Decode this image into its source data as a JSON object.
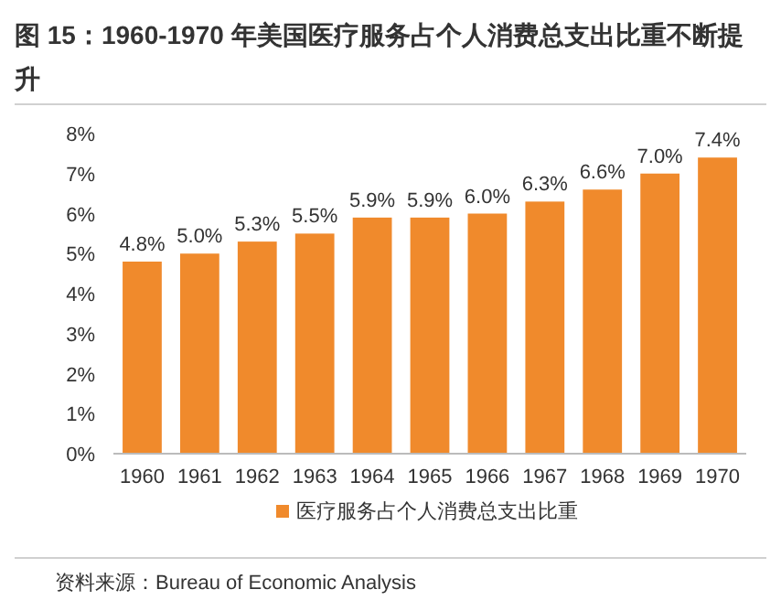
{
  "chart_data": {
    "type": "bar",
    "title": "图 15：1960-1970 年美国医疗服务占个人消费总支出比重不断提升",
    "categories": [
      "1960",
      "1961",
      "1962",
      "1963",
      "1964",
      "1965",
      "1966",
      "1967",
      "1968",
      "1969",
      "1970"
    ],
    "series": [
      {
        "name": "医疗服务占个人消费总支出比重",
        "color": "#f08a2c",
        "values": [
          4.8,
          5.0,
          5.3,
          5.5,
          5.9,
          5.9,
          6.0,
          6.3,
          6.6,
          7.0,
          7.4
        ],
        "value_labels": [
          "4.8%",
          "5.0%",
          "5.3%",
          "5.5%",
          "5.9%",
          "5.9%",
          "6.0%",
          "6.3%",
          "6.6%",
          "7.0%",
          "7.4%"
        ]
      }
    ],
    "ylim": [
      0,
      8
    ],
    "yticks": [
      {
        "value": 0,
        "label": "0%"
      },
      {
        "value": 1,
        "label": "1%"
      },
      {
        "value": 2,
        "label": "2%"
      },
      {
        "value": 3,
        "label": "3%"
      },
      {
        "value": 4,
        "label": "4%"
      },
      {
        "value": 5,
        "label": "5%"
      },
      {
        "value": 6,
        "label": "6%"
      },
      {
        "value": 7,
        "label": "7%"
      },
      {
        "value": 8,
        "label": "8%"
      }
    ],
    "legend": "bottom",
    "grid": false,
    "annotations": [
      "资料来源：Bureau of Economic Analysis"
    ]
  }
}
